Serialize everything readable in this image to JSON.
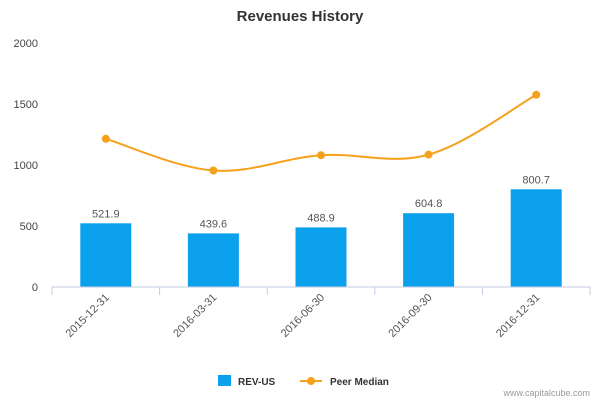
{
  "chart_data": {
    "type": "bar",
    "title": "Revenues History",
    "xlabel": "",
    "ylabel": "",
    "categories": [
      "2015-12-31",
      "2016-03-31",
      "2016-06-30",
      "2016-09-30",
      "2016-12-31"
    ],
    "ylim": [
      0,
      2000
    ],
    "yticks": [
      "0",
      "500",
      "1000",
      "1500",
      "2000"
    ],
    "grid": false,
    "legend_position": "bottom-center",
    "series": [
      {
        "name": "REV-US",
        "type": "bar",
        "color": "#0aa0ec",
        "values": [
          521.9,
          439.6,
          488.9,
          604.8,
          800.7
        ],
        "data_labels": [
          "521.9",
          "439.6",
          "488.9",
          "604.8",
          "800.7"
        ]
      },
      {
        "name": "Peer Median",
        "type": "line",
        "color": "#f5a11c",
        "values": [
          1215,
          955,
          1080,
          1085,
          1575
        ]
      }
    ]
  },
  "credit": "www.capitalcube.com"
}
